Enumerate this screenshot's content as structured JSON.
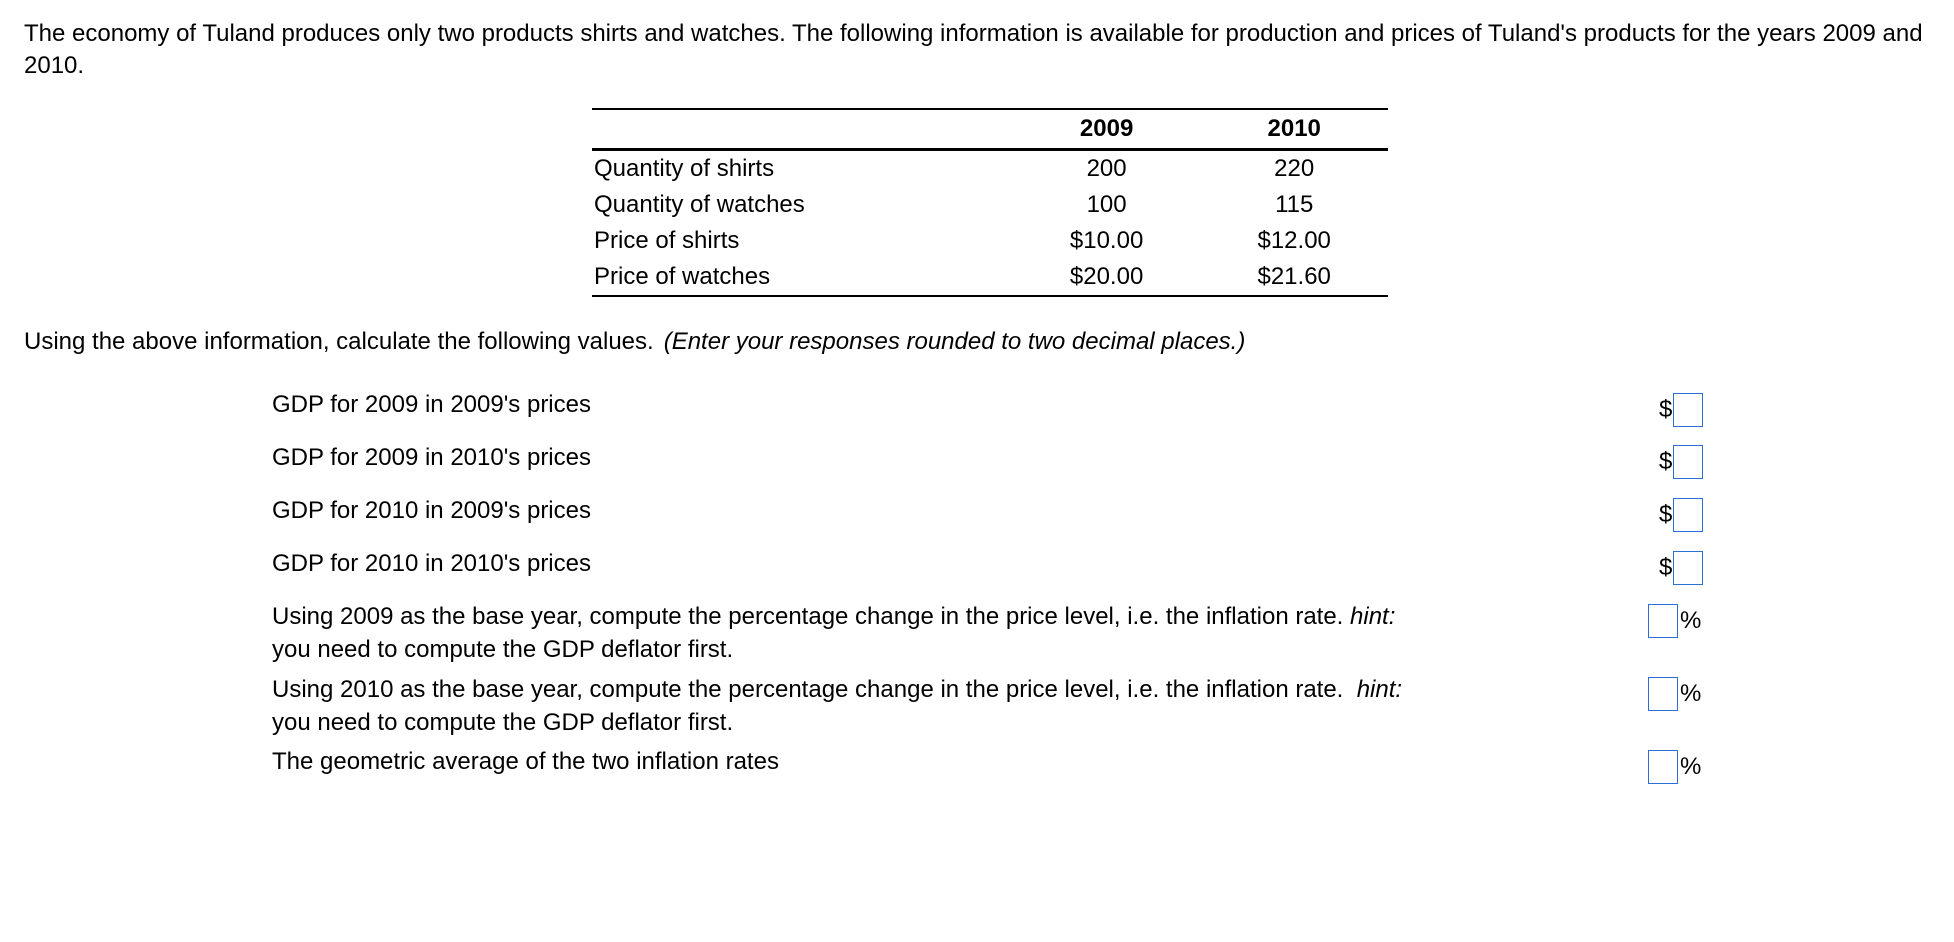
{
  "intro": "The economy of Tuland produces only two products shirts and watches. The following information is available for production and prices of Tuland's products for the years 2009 and 2010.",
  "table": {
    "headers": [
      "",
      "2009",
      "2010"
    ],
    "rows": [
      {
        "label": "Quantity of shirts",
        "v2009": "200",
        "v2010": "220"
      },
      {
        "label": "Quantity of watches",
        "v2009": "100",
        "v2010": "115"
      },
      {
        "label": "Price of shirts",
        "v2009": "$10.00",
        "v2010": "$12.00"
      },
      {
        "label": "Price of watches",
        "v2009": "$20.00",
        "v2010": "$21.60"
      }
    ]
  },
  "instruction": {
    "text": "Using the above information, calculate the following values.",
    "note": "(Enter your responses rounded to two decimal places.)"
  },
  "questions": [
    {
      "text": "GDP for 2009 in 2009's prices",
      "prefix": "$",
      "suffix": "",
      "value": ""
    },
    {
      "text": "GDP for 2009 in 2010's prices",
      "prefix": "$",
      "suffix": "",
      "value": ""
    },
    {
      "text": "GDP for 2010 in 2009's prices",
      "prefix": "$",
      "suffix": "",
      "value": ""
    },
    {
      "text": "GDP for 2010 in 2010's prices",
      "prefix": "$",
      "suffix": "",
      "value": ""
    },
    {
      "text_before": "Using 2009 as the base year, compute the percentage change in the price level, i.e. the inflation rate.",
      "hint": "hint:",
      "text_after": "you need to compute the GDP deflator first.",
      "prefix": "",
      "suffix": "%",
      "value": ""
    },
    {
      "text_before": "Using 2010 as the base year, compute the percentage change in the price level, i.e. the inflation rate.",
      "hint": "hint:",
      "text_after": "you need to compute the GDP deflator first.",
      "prefix": "",
      "suffix": "%",
      "value": ""
    },
    {
      "text": "The geometric average of the two inflation rates",
      "prefix": "",
      "suffix": "%",
      "value": ""
    }
  ],
  "colors": {
    "input_border": "#2a6ed8"
  }
}
